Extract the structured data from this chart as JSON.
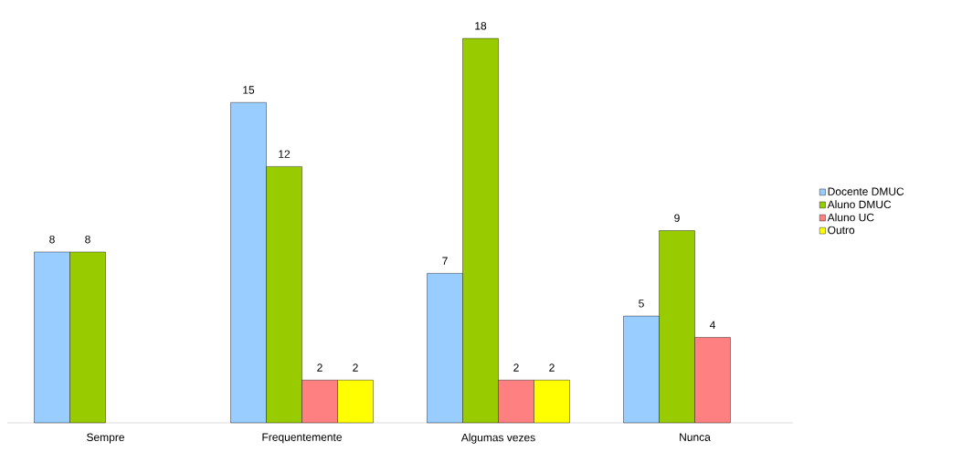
{
  "chart_data": {
    "type": "bar",
    "categories": [
      "Sempre",
      "Frequentemente",
      "Algumas vezes",
      "Nunca"
    ],
    "series": [
      {
        "name": "Docente DMUC",
        "color": "#99ccff",
        "values": [
          8,
          15,
          7,
          5
        ]
      },
      {
        "name": "Aluno DMUC",
        "color": "#99cc00",
        "values": [
          8,
          12,
          18,
          9
        ]
      },
      {
        "name": "Aluno UC",
        "color": "#ff8080",
        "values": [
          null,
          2,
          2,
          4
        ]
      },
      {
        "name": "Outro",
        "color": "#ffff00",
        "values": [
          null,
          2,
          2,
          null
        ]
      }
    ],
    "data_labels": true,
    "legend": "right"
  }
}
